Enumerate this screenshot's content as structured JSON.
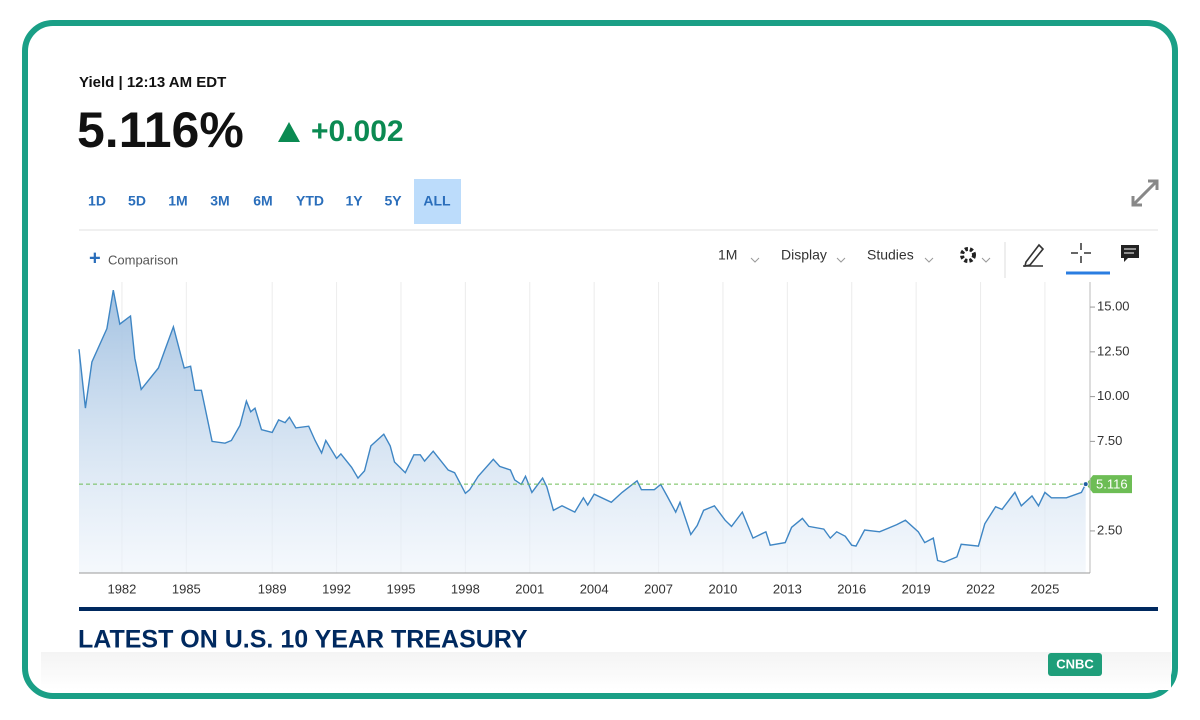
{
  "header": {
    "subtitle": "Yield | 12:13 AM EDT",
    "price": "5.116%",
    "change": "+0.002"
  },
  "ranges": [
    {
      "label": "1D",
      "selected": false
    },
    {
      "label": "5D",
      "selected": false
    },
    {
      "label": "1M",
      "selected": false
    },
    {
      "label": "3M",
      "selected": false
    },
    {
      "label": "6M",
      "selected": false
    },
    {
      "label": "YTD",
      "selected": false
    },
    {
      "label": "1Y",
      "selected": false
    },
    {
      "label": "5Y",
      "selected": false
    },
    {
      "label": "ALL",
      "selected": true
    }
  ],
  "toolbar": {
    "comparison": "Comparison",
    "interval": "1M",
    "display": "Display",
    "studies": "Studies"
  },
  "chart_data": {
    "type": "area",
    "x": [
      1980.0,
      1980.3,
      1980.6,
      1981.3,
      1981.6,
      1981.9,
      1982.4,
      1982.6,
      1982.9,
      1983.7,
      1984.0,
      1984.4,
      1984.9,
      1985.2,
      1985.4,
      1985.7,
      1986.2,
      1986.8,
      1987.1,
      1987.5,
      1987.8,
      1988.0,
      1988.2,
      1988.5,
      1989.0,
      1989.3,
      1989.6,
      1989.8,
      1990.1,
      1990.7,
      1991.0,
      1991.3,
      1991.5,
      1992.0,
      1992.2,
      1992.7,
      1993.0,
      1993.3,
      1993.6,
      1994.2,
      1994.5,
      1994.7,
      1995.2,
      1995.6,
      1995.9,
      1996.1,
      1996.5,
      1997.2,
      1997.5,
      1998.0,
      1998.2,
      1998.6,
      1999.3,
      1999.6,
      2000.1,
      2000.3,
      2000.6,
      2000.8,
      2001.1,
      2001.6,
      2001.8,
      2002.1,
      2002.5,
      2003.1,
      2003.5,
      2003.7,
      2004.0,
      2004.8,
      2005.3,
      2006.0,
      2006.2,
      2006.8,
      2007.1,
      2007.4,
      2007.8,
      2008.0,
      2008.5,
      2008.8,
      2009.1,
      2009.6,
      2010.1,
      2010.4,
      2010.9,
      2011.4,
      2012.0,
      2012.2,
      2012.9,
      2013.2,
      2013.7,
      2014.0,
      2014.7,
      2015.0,
      2015.3,
      2015.7,
      2016.0,
      2016.2,
      2016.6,
      2017.3,
      2018.1,
      2018.5,
      2019.1,
      2019.4,
      2019.8,
      2020.0,
      2020.3,
      2020.9,
      2021.1,
      2021.9,
      2022.2,
      2022.7,
      2023.0,
      2023.6,
      2023.9,
      2024.4,
      2024.7,
      2025.0,
      2025.3,
      2026.0,
      2026.7,
      2026.9
    ],
    "series": [
      {
        "color": "#3f86c4",
        "values": [
          12.65,
          9.36,
          11.93,
          13.8,
          15.95,
          14.05,
          14.5,
          12.15,
          10.4,
          11.6,
          12.6,
          13.9,
          11.6,
          11.7,
          10.35,
          10.35,
          7.5,
          7.4,
          7.55,
          8.4,
          9.75,
          9.15,
          9.35,
          8.15,
          8.0,
          8.7,
          8.55,
          8.85,
          8.25,
          8.35,
          7.55,
          6.85,
          7.55,
          6.55,
          6.8,
          6.05,
          5.45,
          5.85,
          7.25,
          7.9,
          7.25,
          6.35,
          5.75,
          6.75,
          6.75,
          6.4,
          6.95,
          5.9,
          5.75,
          4.6,
          4.8,
          5.55,
          6.5,
          6.1,
          5.9,
          5.35,
          5.1,
          5.55,
          4.65,
          5.45,
          4.95,
          3.65,
          3.9,
          3.55,
          4.35,
          3.95,
          4.55,
          4.1,
          4.65,
          5.3,
          4.8,
          4.8,
          5.1,
          4.45,
          3.55,
          4.1,
          2.3,
          2.8,
          3.65,
          3.9,
          3.1,
          2.75,
          3.55,
          2.1,
          2.45,
          1.7,
          1.85,
          2.7,
          3.2,
          2.75,
          2.6,
          2.1,
          2.45,
          2.2,
          1.7,
          1.65,
          2.55,
          2.45,
          2.85,
          3.1,
          2.45,
          1.85,
          2.1,
          0.85,
          0.75,
          1.05,
          1.75,
          1.65,
          2.9,
          3.85,
          3.7,
          4.65,
          3.9,
          4.45,
          3.9,
          4.65,
          4.35,
          4.35,
          4.65,
          5.116
        ]
      }
    ],
    "xlim": [
      1980,
      2027.1
    ],
    "ylim": [
      0.15,
      16.4
    ],
    "xticks": [
      1982,
      1985,
      1989,
      1992,
      1995,
      1998,
      2001,
      2004,
      2007,
      2010,
      2013,
      2016,
      2019,
      2022,
      2025
    ],
    "yticks": [
      {
        "value": 2.5,
        "label": "2.50"
      },
      {
        "value": 7.5,
        "label": "7.50"
      },
      {
        "value": 10,
        "label": "10.00"
      },
      {
        "value": 12.5,
        "label": "12.50"
      },
      {
        "value": 15,
        "label": "15.00"
      }
    ],
    "grid": "x",
    "marker_color": "#6dbd55"
  },
  "section_title": "LATEST ON U.S. 10 YEAR TREASURY",
  "badge": "CNBC"
}
